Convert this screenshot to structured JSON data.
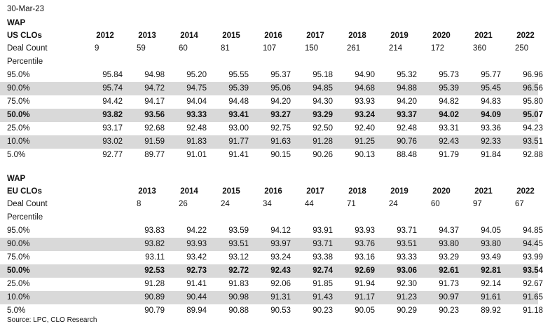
{
  "date": "30-Mar-23",
  "source": "Source: LPC, CLO Research",
  "us": {
    "title": "WAP",
    "subtitle": "US CLOs",
    "years": [
      "2012",
      "2013",
      "2014",
      "2015",
      "2016",
      "2017",
      "2018",
      "2019",
      "2020",
      "2021",
      "2022"
    ],
    "deal_count_label": "Deal Count",
    "deal_counts": [
      "9",
      "59",
      "60",
      "81",
      "107",
      "150",
      "261",
      "214",
      "172",
      "360",
      "250"
    ],
    "percentile_label": "Percentile",
    "rows": [
      {
        "label": "95.0%",
        "values": [
          "95.84",
          "94.98",
          "95.20",
          "95.55",
          "95.37",
          "95.18",
          "94.90",
          "95.32",
          "95.73",
          "95.77",
          "96.96"
        ]
      },
      {
        "label": "90.0%",
        "values": [
          "95.74",
          "94.72",
          "94.75",
          "95.39",
          "95.06",
          "94.85",
          "94.68",
          "94.88",
          "95.39",
          "95.45",
          "96.56"
        ]
      },
      {
        "label": "75.0%",
        "values": [
          "94.42",
          "94.17",
          "94.04",
          "94.48",
          "94.20",
          "94.30",
          "93.93",
          "94.20",
          "94.82",
          "94.83",
          "95.80"
        ]
      },
      {
        "label": "50.0%",
        "values": [
          "93.82",
          "93.56",
          "93.33",
          "93.41",
          "93.27",
          "93.29",
          "93.24",
          "93.37",
          "94.02",
          "94.09",
          "95.07"
        ]
      },
      {
        "label": "25.0%",
        "values": [
          "93.17",
          "92.68",
          "92.48",
          "93.00",
          "92.75",
          "92.50",
          "92.40",
          "92.48",
          "93.31",
          "93.36",
          "94.23"
        ]
      },
      {
        "label": "10.0%",
        "values": [
          "93.02",
          "91.59",
          "91.83",
          "91.77",
          "91.63",
          "91.28",
          "91.25",
          "90.76",
          "92.43",
          "92.33",
          "93.51"
        ]
      },
      {
        "label": "5.0%",
        "values": [
          "92.77",
          "89.77",
          "91.01",
          "91.41",
          "90.15",
          "90.26",
          "90.13",
          "88.48",
          "91.79",
          "91.84",
          "92.88"
        ]
      }
    ]
  },
  "eu": {
    "title": "WAP",
    "subtitle": "EU CLOs",
    "years": [
      "2013",
      "2014",
      "2015",
      "2016",
      "2017",
      "2018",
      "2019",
      "2020",
      "2021",
      "2022"
    ],
    "deal_count_label": "Deal Count",
    "deal_counts": [
      "8",
      "26",
      "24",
      "34",
      "44",
      "71",
      "24",
      "60",
      "97",
      "67"
    ],
    "percentile_label": "Percentile",
    "rows": [
      {
        "label": "95.0%",
        "values": [
          "93.83",
          "94.22",
          "93.59",
          "94.12",
          "93.91",
          "93.93",
          "93.71",
          "94.37",
          "94.05",
          "94.85"
        ]
      },
      {
        "label": "90.0%",
        "values": [
          "93.82",
          "93.93",
          "93.51",
          "93.97",
          "93.71",
          "93.76",
          "93.51",
          "93.80",
          "93.80",
          "94.45"
        ]
      },
      {
        "label": "75.0%",
        "values": [
          "93.11",
          "93.42",
          "93.12",
          "93.24",
          "93.38",
          "93.16",
          "93.33",
          "93.29",
          "93.49",
          "93.99"
        ]
      },
      {
        "label": "50.0%",
        "values": [
          "92.53",
          "92.73",
          "92.72",
          "92.43",
          "92.74",
          "92.69",
          "93.06",
          "92.61",
          "92.81",
          "93.54"
        ]
      },
      {
        "label": "25.0%",
        "values": [
          "91.28",
          "91.41",
          "91.83",
          "92.06",
          "91.85",
          "91.94",
          "92.30",
          "91.73",
          "92.14",
          "92.67"
        ]
      },
      {
        "label": "10.0%",
        "values": [
          "90.89",
          "90.44",
          "90.98",
          "91.31",
          "91.43",
          "91.17",
          "91.23",
          "90.97",
          "91.61",
          "91.65"
        ]
      },
      {
        "label": "5.0%",
        "values": [
          "90.79",
          "89.94",
          "90.88",
          "90.53",
          "90.23",
          "90.05",
          "90.29",
          "90.23",
          "89.92",
          "91.18"
        ]
      }
    ]
  }
}
